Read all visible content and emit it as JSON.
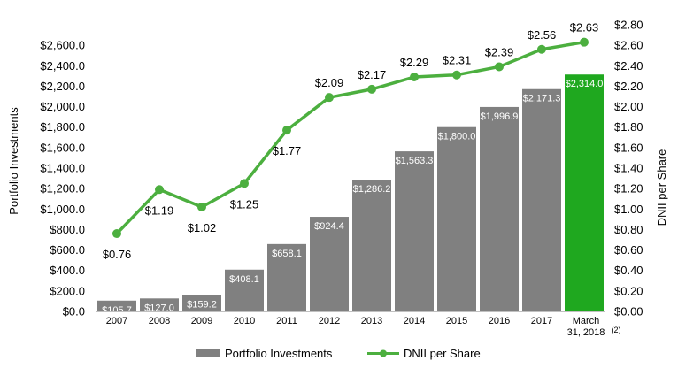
{
  "chart_data": {
    "type": "bar+line",
    "categories": [
      "2007",
      "2008",
      "2009",
      "2010",
      "2011",
      "2012",
      "2013",
      "2014",
      "2015",
      "2016",
      "2017",
      "March 31, 2018"
    ],
    "category_lines": [
      [
        "2007"
      ],
      [
        "2008"
      ],
      [
        "2009"
      ],
      [
        "2010"
      ],
      [
        "2011"
      ],
      [
        "2012"
      ],
      [
        "2013"
      ],
      [
        "2014"
      ],
      [
        "2015"
      ],
      [
        "2016"
      ],
      [
        "2017"
      ],
      [
        "March",
        "31, 2018"
      ]
    ],
    "category_footnote": "(2)",
    "series": [
      {
        "name": "Portfolio Investments",
        "kind": "bar",
        "axis": "left",
        "values": [
          105.7,
          127.0,
          159.2,
          408.1,
          658.1,
          924.4,
          1286.2,
          1563.3,
          1800.0,
          1996.9,
          2171.3,
          2314.0
        ],
        "labels": [
          "$105.7",
          "$127.0",
          "$159.2",
          "$408.1",
          "$658.1",
          "$924.4",
          "$1,286.2",
          "$1,563.3",
          "$1,800.0",
          "$1,996.9",
          "$2,171.3",
          "$2,314.0"
        ],
        "color": "#808080",
        "highlight_color": "#1FA81F",
        "highlight_index": 11
      },
      {
        "name": "DNII per Share",
        "kind": "line",
        "axis": "right",
        "values": [
          0.76,
          1.19,
          1.02,
          1.25,
          1.77,
          2.09,
          2.17,
          2.29,
          2.31,
          2.39,
          2.56,
          2.63
        ],
        "labels": [
          "$0.76",
          "$1.19",
          "$1.02",
          "$1.25",
          "$1.77",
          "$2.09",
          "$2.17",
          "$2.29",
          "$2.31",
          "$2.39",
          "$2.56",
          "$2.63"
        ],
        "color": "#4CAF3F"
      }
    ],
    "y_left": {
      "label": "Portfolio Investments",
      "min": 0,
      "max": 2800,
      "ticks": [
        "$0.0",
        "$200.0",
        "$400.0",
        "$600.0",
        "$800.0",
        "$1,000.0",
        "$1,200.0",
        "$1,400.0",
        "$1,600.0",
        "$1,800.0",
        "$2,000.0",
        "$2,200.0",
        "$2,400.0",
        "$2,600.0"
      ]
    },
    "y_right": {
      "label": "DNII per Share",
      "min": 0,
      "max": 2.8,
      "ticks": [
        "$0.00",
        "$0.20",
        "$0.40",
        "$0.60",
        "$0.80",
        "$1.00",
        "$1.20",
        "$1.40",
        "$1.60",
        "$1.80",
        "$2.00",
        "$2.20",
        "$2.40",
        "$2.60",
        "$2.80"
      ]
    },
    "legend": {
      "position": "bottom",
      "items": [
        {
          "label": "Portfolio Investments",
          "symbol": "bar"
        },
        {
          "label": "DNII per Share",
          "symbol": "line"
        }
      ]
    },
    "grid": false
  }
}
